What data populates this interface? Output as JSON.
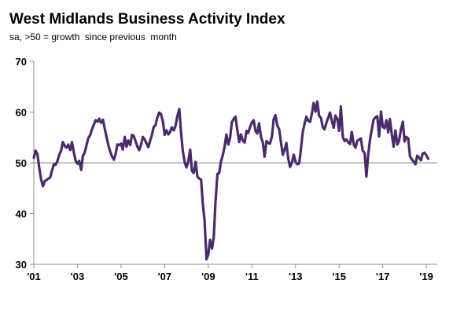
{
  "title": "West Midlands Business Activity Index",
  "subtitle": "sa, >50 = growth  since previous  month",
  "chart_data": {
    "type": "line",
    "ylim": [
      30,
      70
    ],
    "yticks": [
      30,
      40,
      50,
      60,
      70
    ],
    "reference_line": 50,
    "xlim": [
      2001.0,
      2019.5
    ],
    "xticks": [
      {
        "value": 2001,
        "label": "'01"
      },
      {
        "value": 2003,
        "label": "'03"
      },
      {
        "value": 2005,
        "label": "'05"
      },
      {
        "value": 2007,
        "label": "'07"
      },
      {
        "value": 2009,
        "label": "'09"
      },
      {
        "value": 2011,
        "label": "'11"
      },
      {
        "value": 2013,
        "label": "'13"
      },
      {
        "value": 2015,
        "label": "'15"
      },
      {
        "value": 2017,
        "label": "'17"
      },
      {
        "value": 2019,
        "label": "'19"
      }
    ],
    "grid": false,
    "series": [
      {
        "color": "#4b2a6b",
        "points": [
          [
            2001.0,
            51.0
          ],
          [
            2001.08,
            52.4
          ],
          [
            2001.17,
            51.6
          ],
          [
            2001.25,
            49.0
          ],
          [
            2001.33,
            46.8
          ],
          [
            2001.42,
            45.4
          ],
          [
            2001.5,
            46.4
          ],
          [
            2001.58,
            46.6
          ],
          [
            2001.67,
            46.9
          ],
          [
            2001.75,
            47.1
          ],
          [
            2001.83,
            48.4
          ],
          [
            2001.92,
            49.7
          ],
          [
            2002.0,
            49.6
          ],
          [
            2002.08,
            50.3
          ],
          [
            2002.17,
            51.6
          ],
          [
            2002.25,
            52.4
          ],
          [
            2002.33,
            54.1
          ],
          [
            2002.42,
            53.3
          ],
          [
            2002.5,
            53.0
          ],
          [
            2002.58,
            53.6
          ],
          [
            2002.67,
            52.5
          ],
          [
            2002.75,
            54.1
          ],
          [
            2002.83,
            52.2
          ],
          [
            2002.92,
            50.4
          ],
          [
            2003.0,
            49.8
          ],
          [
            2003.08,
            50.4
          ],
          [
            2003.17,
            48.6
          ],
          [
            2003.25,
            51.4
          ],
          [
            2003.33,
            52.0
          ],
          [
            2003.42,
            53.5
          ],
          [
            2003.5,
            54.9
          ],
          [
            2003.58,
            55.4
          ],
          [
            2003.67,
            56.6
          ],
          [
            2003.75,
            57.5
          ],
          [
            2003.83,
            58.4
          ],
          [
            2003.92,
            58.1
          ],
          [
            2004.0,
            58.7
          ],
          [
            2004.08,
            57.9
          ],
          [
            2004.17,
            58.5
          ],
          [
            2004.25,
            56.8
          ],
          [
            2004.33,
            55.2
          ],
          [
            2004.42,
            53.5
          ],
          [
            2004.5,
            52.2
          ],
          [
            2004.58,
            51.3
          ],
          [
            2004.67,
            50.6
          ],
          [
            2004.75,
            51.7
          ],
          [
            2004.83,
            53.6
          ],
          [
            2004.92,
            53.5
          ],
          [
            2005.0,
            53.8
          ],
          [
            2005.08,
            52.6
          ],
          [
            2005.17,
            55.1
          ],
          [
            2005.25,
            53.2
          ],
          [
            2005.33,
            54.4
          ],
          [
            2005.42,
            53.5
          ],
          [
            2005.5,
            55.5
          ],
          [
            2005.58,
            55.3
          ],
          [
            2005.67,
            54.2
          ],
          [
            2005.75,
            53.2
          ],
          [
            2005.83,
            52.5
          ],
          [
            2005.92,
            53.6
          ],
          [
            2006.0,
            55.1
          ],
          [
            2006.08,
            54.6
          ],
          [
            2006.17,
            53.8
          ],
          [
            2006.25,
            53.1
          ],
          [
            2006.33,
            54.3
          ],
          [
            2006.42,
            55.6
          ],
          [
            2006.5,
            57.1
          ],
          [
            2006.58,
            57.4
          ],
          [
            2006.67,
            59.0
          ],
          [
            2006.75,
            59.9
          ],
          [
            2006.83,
            59.6
          ],
          [
            2006.92,
            58.1
          ],
          [
            2007.0,
            55.5
          ],
          [
            2007.08,
            56.4
          ],
          [
            2007.17,
            55.6
          ],
          [
            2007.25,
            56.1
          ],
          [
            2007.33,
            57.0
          ],
          [
            2007.42,
            56.4
          ],
          [
            2007.5,
            57.3
          ],
          [
            2007.58,
            59.2
          ],
          [
            2007.67,
            60.6
          ],
          [
            2007.75,
            56.0
          ],
          [
            2007.83,
            52.4
          ],
          [
            2007.92,
            50.1
          ],
          [
            2008.0,
            49.1
          ],
          [
            2008.08,
            50.2
          ],
          [
            2008.17,
            52.6
          ],
          [
            2008.25,
            48.4
          ],
          [
            2008.33,
            48.0
          ],
          [
            2008.42,
            50.2
          ],
          [
            2008.5,
            47.3
          ],
          [
            2008.58,
            46.9
          ],
          [
            2008.67,
            46.7
          ],
          [
            2008.75,
            41.9
          ],
          [
            2008.83,
            38.6
          ],
          [
            2008.92,
            31.0
          ],
          [
            2009.0,
            31.9
          ],
          [
            2009.08,
            34.8
          ],
          [
            2009.17,
            33.1
          ],
          [
            2009.25,
            35.3
          ],
          [
            2009.33,
            42.3
          ],
          [
            2009.42,
            47.8
          ],
          [
            2009.5,
            48.0
          ],
          [
            2009.58,
            50.2
          ],
          [
            2009.67,
            51.6
          ],
          [
            2009.75,
            53.2
          ],
          [
            2009.83,
            55.6
          ],
          [
            2009.92,
            53.6
          ],
          [
            2010.0,
            55.0
          ],
          [
            2010.08,
            58.0
          ],
          [
            2010.17,
            58.7
          ],
          [
            2010.25,
            59.1
          ],
          [
            2010.33,
            56.5
          ],
          [
            2010.42,
            54.1
          ],
          [
            2010.5,
            55.6
          ],
          [
            2010.58,
            54.4
          ],
          [
            2010.67,
            54.0
          ],
          [
            2010.75,
            56.3
          ],
          [
            2010.83,
            55.9
          ],
          [
            2010.92,
            57.1
          ],
          [
            2011.0,
            58.0
          ],
          [
            2011.08,
            58.4
          ],
          [
            2011.17,
            56.2
          ],
          [
            2011.25,
            55.8
          ],
          [
            2011.33,
            57.8
          ],
          [
            2011.42,
            55.1
          ],
          [
            2011.5,
            54.0
          ],
          [
            2011.58,
            51.2
          ],
          [
            2011.67,
            54.3
          ],
          [
            2011.75,
            53.9
          ],
          [
            2011.83,
            53.8
          ],
          [
            2011.92,
            55.2
          ],
          [
            2012.0,
            58.6
          ],
          [
            2012.08,
            59.4
          ],
          [
            2012.17,
            57.3
          ],
          [
            2012.25,
            56.6
          ],
          [
            2012.33,
            54.1
          ],
          [
            2012.42,
            51.6
          ],
          [
            2012.5,
            52.6
          ],
          [
            2012.58,
            53.9
          ],
          [
            2012.67,
            50.8
          ],
          [
            2012.75,
            49.2
          ],
          [
            2012.83,
            49.9
          ],
          [
            2012.92,
            51.6
          ],
          [
            2013.0,
            50.2
          ],
          [
            2013.08,
            49.7
          ],
          [
            2013.17,
            49.9
          ],
          [
            2013.25,
            52.8
          ],
          [
            2013.33,
            56.0
          ],
          [
            2013.42,
            57.8
          ],
          [
            2013.5,
            59.1
          ],
          [
            2013.58,
            58.3
          ],
          [
            2013.67,
            58.1
          ],
          [
            2013.75,
            59.7
          ],
          [
            2013.83,
            61.8
          ],
          [
            2013.92,
            60.1
          ],
          [
            2014.0,
            62.1
          ],
          [
            2014.08,
            59.3
          ],
          [
            2014.17,
            58.8
          ],
          [
            2014.25,
            57.0
          ],
          [
            2014.33,
            56.6
          ],
          [
            2014.42,
            57.9
          ],
          [
            2014.5,
            58.9
          ],
          [
            2014.58,
            59.9
          ],
          [
            2014.67,
            58.2
          ],
          [
            2014.75,
            56.9
          ],
          [
            2014.83,
            59.3
          ],
          [
            2014.92,
            58.6
          ],
          [
            2015.0,
            56.3
          ],
          [
            2015.08,
            61.1
          ],
          [
            2015.17,
            55.1
          ],
          [
            2015.25,
            54.3
          ],
          [
            2015.33,
            54.6
          ],
          [
            2015.42,
            54.0
          ],
          [
            2015.5,
            53.7
          ],
          [
            2015.58,
            56.1
          ],
          [
            2015.67,
            53.6
          ],
          [
            2015.75,
            53.0
          ],
          [
            2015.83,
            54.3
          ],
          [
            2015.92,
            54.6
          ],
          [
            2016.0,
            54.8
          ],
          [
            2016.08,
            52.4
          ],
          [
            2016.17,
            51.9
          ],
          [
            2016.25,
            47.3
          ],
          [
            2016.33,
            51.5
          ],
          [
            2016.42,
            54.7
          ],
          [
            2016.5,
            56.6
          ],
          [
            2016.58,
            58.5
          ],
          [
            2016.67,
            59.0
          ],
          [
            2016.75,
            59.2
          ],
          [
            2016.83,
            55.2
          ],
          [
            2016.92,
            60.1
          ],
          [
            2017.0,
            57.1
          ],
          [
            2017.08,
            56.8
          ],
          [
            2017.17,
            58.4
          ],
          [
            2017.25,
            56.0
          ],
          [
            2017.33,
            58.6
          ],
          [
            2017.42,
            55.5
          ],
          [
            2017.5,
            53.2
          ],
          [
            2017.58,
            56.4
          ],
          [
            2017.67,
            53.6
          ],
          [
            2017.75,
            54.4
          ],
          [
            2017.83,
            56.5
          ],
          [
            2017.92,
            58.1
          ],
          [
            2018.0,
            54.2
          ],
          [
            2018.08,
            55.1
          ],
          [
            2018.17,
            54.8
          ],
          [
            2018.25,
            51.3
          ],
          [
            2018.33,
            50.7
          ],
          [
            2018.42,
            50.2
          ],
          [
            2018.5,
            49.7
          ],
          [
            2018.58,
            51.4
          ],
          [
            2018.67,
            51.0
          ],
          [
            2018.75,
            50.5
          ],
          [
            2018.83,
            51.8
          ],
          [
            2018.92,
            52.0
          ],
          [
            2019.0,
            51.5
          ],
          [
            2019.08,
            50.8
          ]
        ]
      }
    ]
  }
}
